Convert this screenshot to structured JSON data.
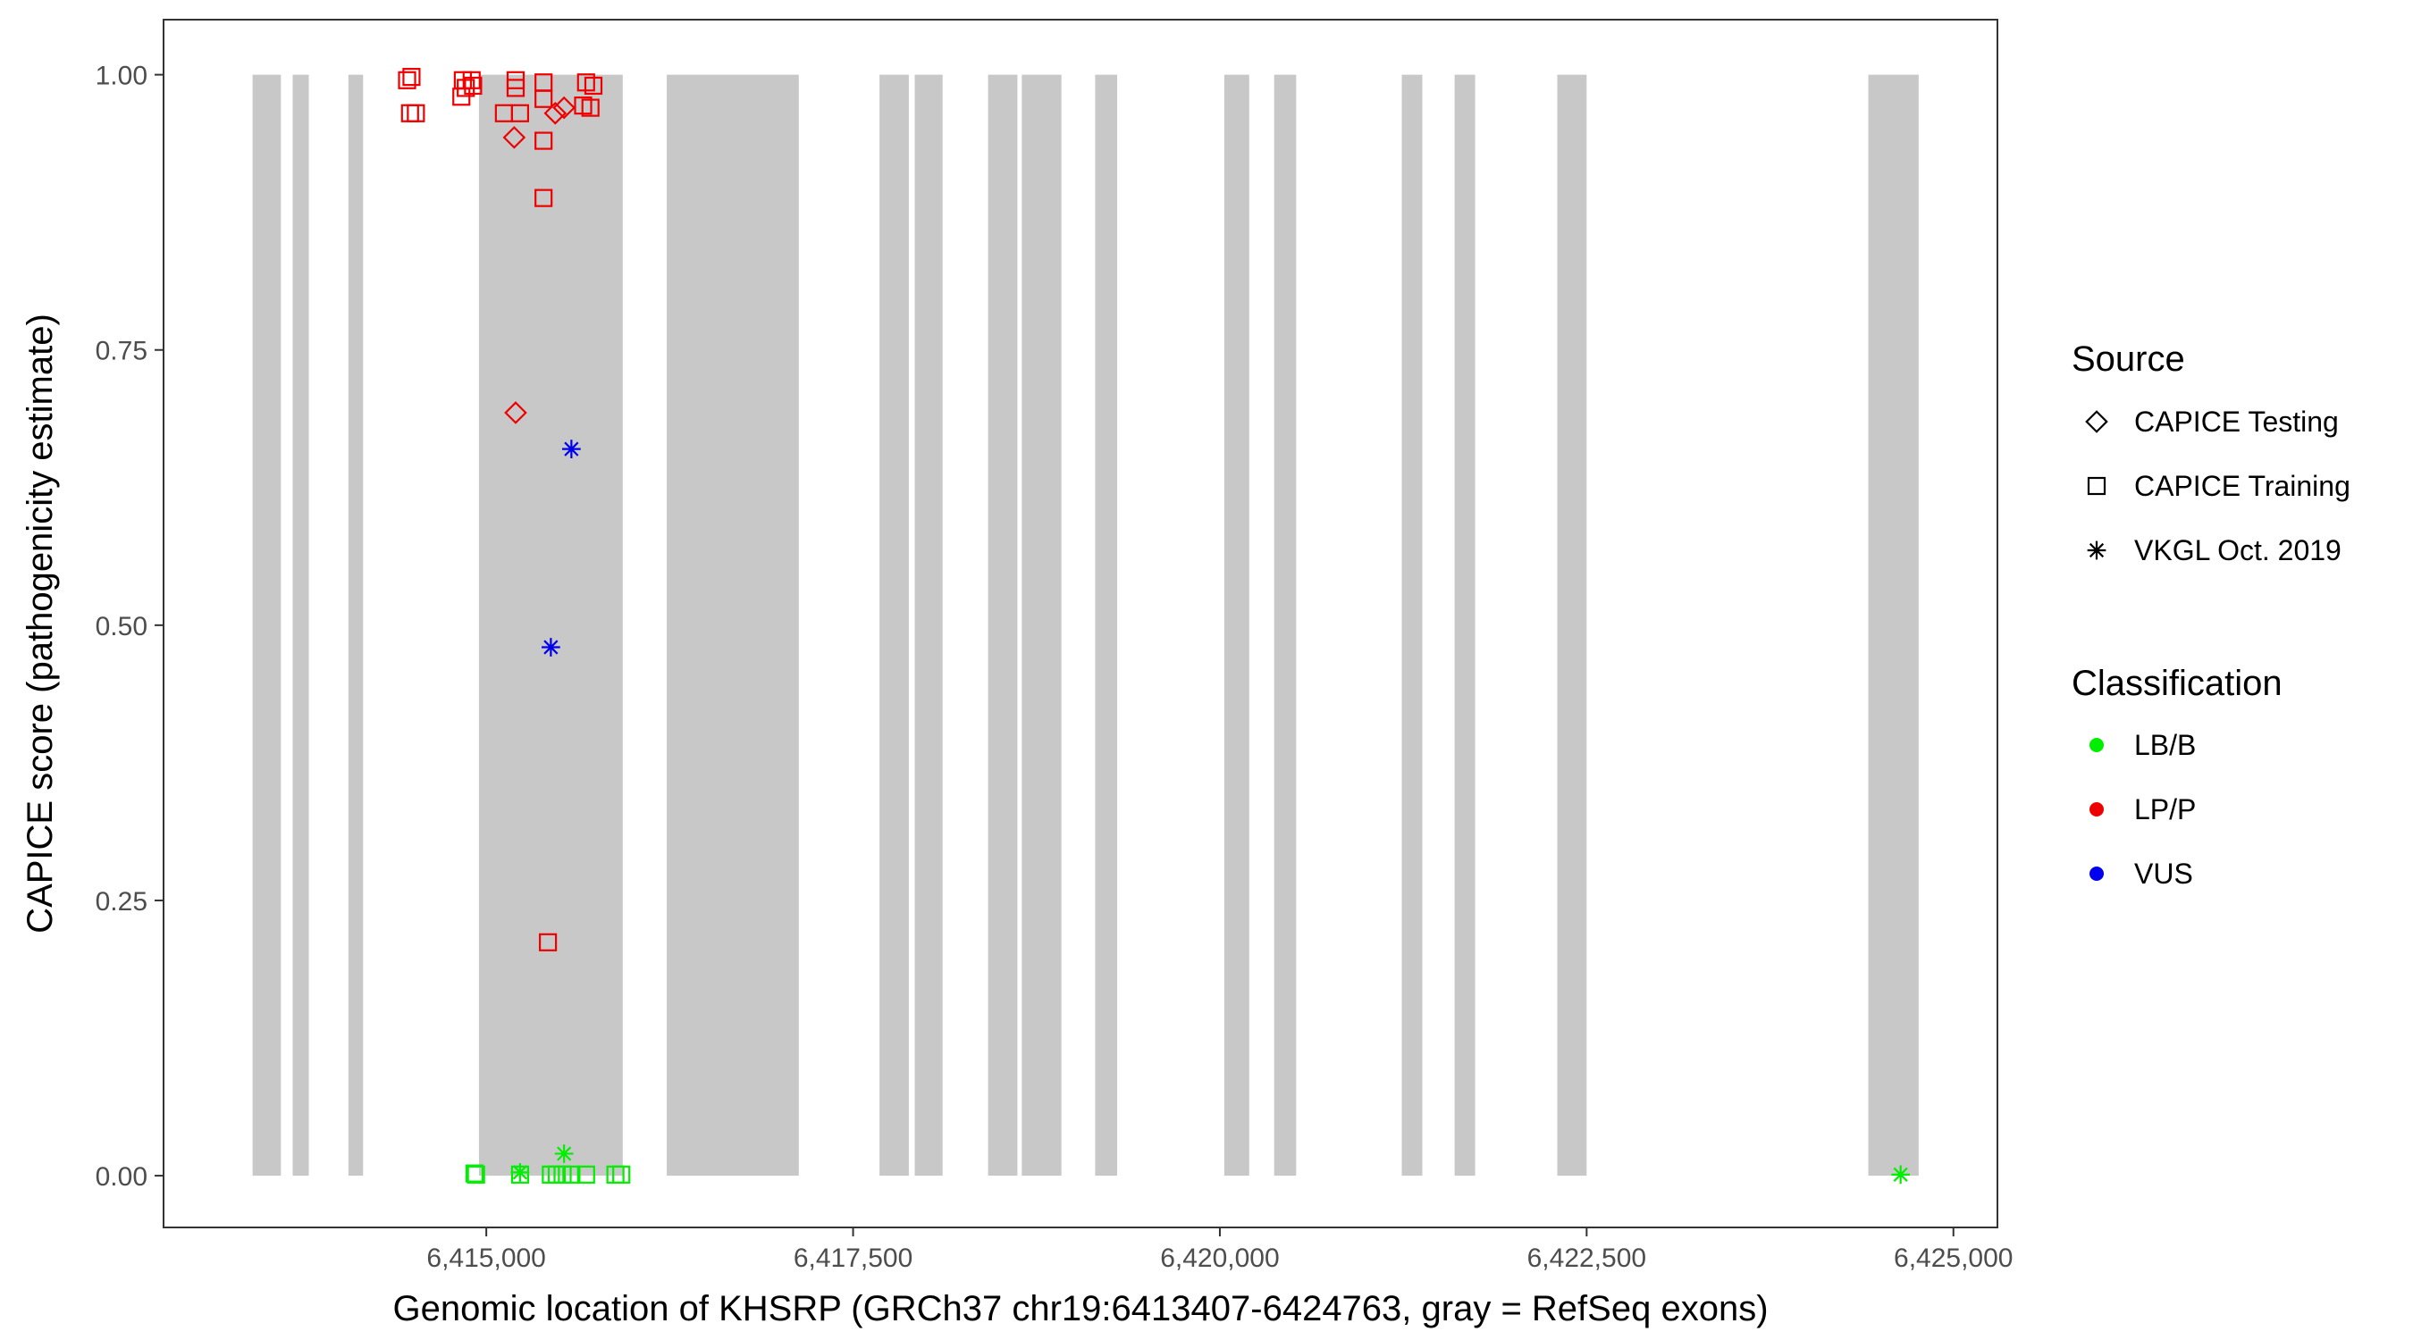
{
  "chart_data": {
    "type": "scatter",
    "xlabel": "Genomic location of KHSRP (GRCh37 chr19:6413407-6424763, gray = RefSeq exons)",
    "ylabel": "CAPICE score (pathogenicity estimate)",
    "xlim": [
      6412800,
      6425300
    ],
    "ylim": [
      -0.047,
      1.05
    ],
    "x_ticks": [
      6415000,
      6417500,
      6420000,
      6422500,
      6425000
    ],
    "x_tick_labels": [
      "6,415,000",
      "6,417,500",
      "6,420,000",
      "6,422,500",
      "6,425,000"
    ],
    "y_ticks": [
      0,
      0.25,
      0.5,
      0.75,
      1.0
    ],
    "y_tick_labels": [
      "0.00",
      "0.25",
      "0.50",
      "0.75",
      "1.00"
    ],
    "grid": false,
    "legend_placement": "right",
    "exons": [
      [
        6413407,
        6413600
      ],
      [
        6413680,
        6413790
      ],
      [
        6414060,
        6414160
      ],
      [
        6414950,
        6415930
      ],
      [
        6416230,
        6417130
      ],
      [
        6417680,
        6417880
      ],
      [
        6417920,
        6418110
      ],
      [
        6418420,
        6418620
      ],
      [
        6418650,
        6418920
      ],
      [
        6419150,
        6419300
      ],
      [
        6420030,
        6420200
      ],
      [
        6420370,
        6420520
      ],
      [
        6421240,
        6421380
      ],
      [
        6421600,
        6421740
      ],
      [
        6422300,
        6422500
      ],
      [
        6424420,
        6424763
      ]
    ],
    "exon_color": "#c8c8c8",
    "legend": {
      "source_title": "Source",
      "source_items": [
        {
          "label": "CAPICE Testing",
          "shape": "diamond"
        },
        {
          "label": "CAPICE Training",
          "shape": "square"
        },
        {
          "label": "VKGL Oct. 2019",
          "shape": "asterisk"
        }
      ],
      "class_title": "Classification",
      "class_items": [
        {
          "label": "LB/B",
          "color": "#00ee00"
        },
        {
          "label": "LP/P",
          "color": "#ee0000"
        },
        {
          "label": "VUS",
          "color": "#0000ee"
        }
      ]
    },
    "series": [
      {
        "name": "CAPICE Training",
        "shape": "square",
        "classification": "LP/P",
        "points": [
          {
            "x": 6414460,
            "y": 0.995
          },
          {
            "x": 6414490,
            "y": 0.998
          },
          {
            "x": 6414480,
            "y": 0.965
          },
          {
            "x": 6414520,
            "y": 0.965
          },
          {
            "x": 6414840,
            "y": 0.995
          },
          {
            "x": 6414860,
            "y": 0.988
          },
          {
            "x": 6414830,
            "y": 0.98
          },
          {
            "x": 6414900,
            "y": 0.995
          },
          {
            "x": 6414910,
            "y": 0.99
          },
          {
            "x": 6415120,
            "y": 0.965
          },
          {
            "x": 6415200,
            "y": 0.995
          },
          {
            "x": 6415200,
            "y": 0.988
          },
          {
            "x": 6415230,
            "y": 0.965
          },
          {
            "x": 6415390,
            "y": 0.993
          },
          {
            "x": 6415390,
            "y": 0.978
          },
          {
            "x": 6415390,
            "y": 0.94
          },
          {
            "x": 6415390,
            "y": 0.888
          },
          {
            "x": 6415420,
            "y": 0.212
          },
          {
            "x": 6415660,
            "y": 0.972
          },
          {
            "x": 6415680,
            "y": 0.993
          },
          {
            "x": 6415710,
            "y": 0.97
          },
          {
            "x": 6415730,
            "y": 0.99
          }
        ]
      },
      {
        "name": "CAPICE Testing",
        "shape": "diamond",
        "classification": "LP/P",
        "points": [
          {
            "x": 6415190,
            "y": 0.943
          },
          {
            "x": 6415470,
            "y": 0.965
          },
          {
            "x": 6415530,
            "y": 0.97
          },
          {
            "x": 6415200,
            "y": 0.693
          }
        ]
      },
      {
        "name": "VKGL Oct. 2019",
        "shape": "asterisk",
        "classification": "VUS",
        "points": [
          {
            "x": 6415580,
            "y": 0.66
          },
          {
            "x": 6415440,
            "y": 0.48
          }
        ]
      },
      {
        "name": "CAPICE Training",
        "shape": "square",
        "classification": "LB/B",
        "points": [
          {
            "x": 6414920,
            "y": 0.002
          },
          {
            "x": 6414930,
            "y": 0.001
          },
          {
            "x": 6415230,
            "y": 0.001
          },
          {
            "x": 6415440,
            "y": 0.001
          },
          {
            "x": 6415480,
            "y": 0.001
          },
          {
            "x": 6415520,
            "y": 0.001
          },
          {
            "x": 6415580,
            "y": 0.001
          },
          {
            "x": 6415680,
            "y": 0.001
          },
          {
            "x": 6415880,
            "y": 0.001
          },
          {
            "x": 6415920,
            "y": 0.001
          }
        ]
      },
      {
        "name": "VKGL Oct. 2019",
        "shape": "asterisk",
        "classification": "LB/B",
        "points": [
          {
            "x": 6415230,
            "y": 0.003
          },
          {
            "x": 6415530,
            "y": 0.02
          },
          {
            "x": 6424640,
            "y": 0.001
          }
        ]
      }
    ]
  }
}
